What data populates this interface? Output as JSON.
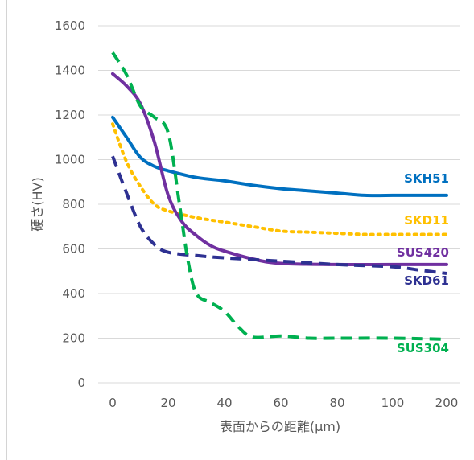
{
  "chart_data": {
    "type": "line",
    "title": "",
    "xlabel": "表面からの距離(μm)",
    "ylabel": "硬さ(HV)",
    "xlim": [
      -10,
      200
    ],
    "ylim": [
      0,
      1600
    ],
    "x_ticks": [
      0,
      20,
      40,
      60,
      80,
      100,
      200
    ],
    "x_tick_labels": [
      "0",
      "20",
      "40",
      "60",
      "80",
      "100",
      "200"
    ],
    "y_ticks": [
      0,
      200,
      400,
      600,
      800,
      1000,
      1200,
      1400,
      1600
    ],
    "y_tick_labels": [
      "0",
      "200",
      "400",
      "600",
      "800",
      "1000",
      "1200",
      "1400",
      "1600"
    ],
    "grid": "horizontal",
    "legend": "labels at right end of lines",
    "series": [
      {
        "name": "SKH51",
        "color": "#0070c0",
        "dash": "solid",
        "points": [
          [
            0,
            1190
          ],
          [
            5,
            1100
          ],
          [
            10,
            1010
          ],
          [
            15,
            970
          ],
          [
            20,
            950
          ],
          [
            30,
            920
          ],
          [
            40,
            905
          ],
          [
            50,
            885
          ],
          [
            60,
            870
          ],
          [
            70,
            860
          ],
          [
            80,
            850
          ],
          [
            90,
            840
          ],
          [
            100,
            840
          ],
          [
            120,
            840
          ],
          [
            140,
            840
          ],
          [
            160,
            840
          ],
          [
            180,
            840
          ],
          [
            200,
            840
          ]
        ]
      },
      {
        "name": "SKD11",
        "color": "#ffc000",
        "dash": "dotted",
        "points": [
          [
            0,
            1160
          ],
          [
            5,
            990
          ],
          [
            10,
            880
          ],
          [
            15,
            800
          ],
          [
            20,
            770
          ],
          [
            30,
            740
          ],
          [
            40,
            720
          ],
          [
            50,
            700
          ],
          [
            60,
            680
          ],
          [
            70,
            675
          ],
          [
            80,
            670
          ],
          [
            90,
            665
          ],
          [
            100,
            665
          ],
          [
            200,
            665
          ]
        ]
      },
      {
        "name": "SUS420",
        "color": "#7030a0",
        "dash": "solid",
        "points": [
          [
            0,
            1385
          ],
          [
            5,
            1330
          ],
          [
            10,
            1250
          ],
          [
            15,
            1080
          ],
          [
            20,
            840
          ],
          [
            25,
            720
          ],
          [
            30,
            660
          ],
          [
            35,
            615
          ],
          [
            40,
            590
          ],
          [
            50,
            555
          ],
          [
            60,
            535
          ],
          [
            80,
            530
          ],
          [
            100,
            530
          ],
          [
            200,
            530
          ]
        ]
      },
      {
        "name": "SKD61",
        "color": "#2e3192",
        "dash": "dashed",
        "points": [
          [
            0,
            1015
          ],
          [
            5,
            850
          ],
          [
            10,
            700
          ],
          [
            15,
            620
          ],
          [
            20,
            585
          ],
          [
            30,
            570
          ],
          [
            40,
            560
          ],
          [
            60,
            545
          ],
          [
            80,
            530
          ],
          [
            100,
            520
          ],
          [
            150,
            505
          ],
          [
            200,
            490
          ]
        ]
      },
      {
        "name": "SUS304",
        "color": "#00b050",
        "dash": "dashed",
        "points": [
          [
            0,
            1480
          ],
          [
            5,
            1380
          ],
          [
            10,
            1240
          ],
          [
            15,
            1190
          ],
          [
            20,
            1120
          ],
          [
            24,
            800
          ],
          [
            27,
            550
          ],
          [
            30,
            400
          ],
          [
            35,
            360
          ],
          [
            40,
            320
          ],
          [
            45,
            250
          ],
          [
            50,
            205
          ],
          [
            60,
            210
          ],
          [
            70,
            200
          ],
          [
            80,
            200
          ],
          [
            100,
            200
          ],
          [
            200,
            195
          ]
        ]
      }
    ]
  }
}
